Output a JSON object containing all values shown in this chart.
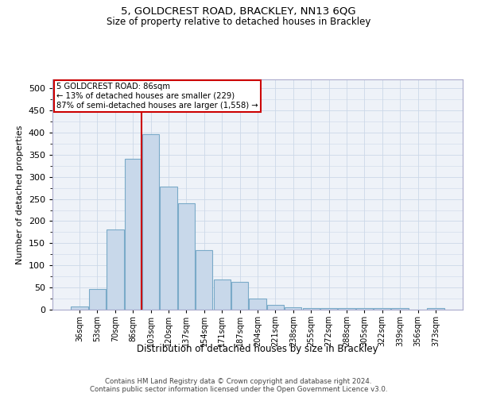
{
  "title1": "5, GOLDCREST ROAD, BRACKLEY, NN13 6QG",
  "title2": "Size of property relative to detached houses in Brackley",
  "xlabel": "Distribution of detached houses by size in Brackley",
  "ylabel": "Number of detached properties",
  "categories": [
    "36sqm",
    "53sqm",
    "70sqm",
    "86sqm",
    "103sqm",
    "120sqm",
    "137sqm",
    "154sqm",
    "171sqm",
    "187sqm",
    "204sqm",
    "221sqm",
    "238sqm",
    "255sqm",
    "272sqm",
    "288sqm",
    "305sqm",
    "322sqm",
    "339sqm",
    "356sqm",
    "373sqm"
  ],
  "values": [
    8,
    46,
    182,
    340,
    397,
    278,
    240,
    135,
    68,
    63,
    25,
    11,
    6,
    4,
    3,
    3,
    3,
    3,
    3,
    0,
    4
  ],
  "bar_color": "#c8d8ea",
  "bar_edge_color": "#7aaac8",
  "vline_index": 3,
  "annotation_title": "5 GOLDCREST ROAD: 86sqm",
  "annotation_line1": "← 13% of detached houses are smaller (229)",
  "annotation_line2": "87% of semi-detached houses are larger (1,558) →",
  "annotation_box_color": "#cc0000",
  "vline_color": "#cc0000",
  "grid_color": "#ccd8e8",
  "background_color": "#eef2f8",
  "footer1": "Contains HM Land Registry data © Crown copyright and database right 2024.",
  "footer2": "Contains public sector information licensed under the Open Government Licence v3.0.",
  "ylim": [
    0,
    520
  ],
  "yticks": [
    0,
    50,
    100,
    150,
    200,
    250,
    300,
    350,
    400,
    450,
    500
  ]
}
